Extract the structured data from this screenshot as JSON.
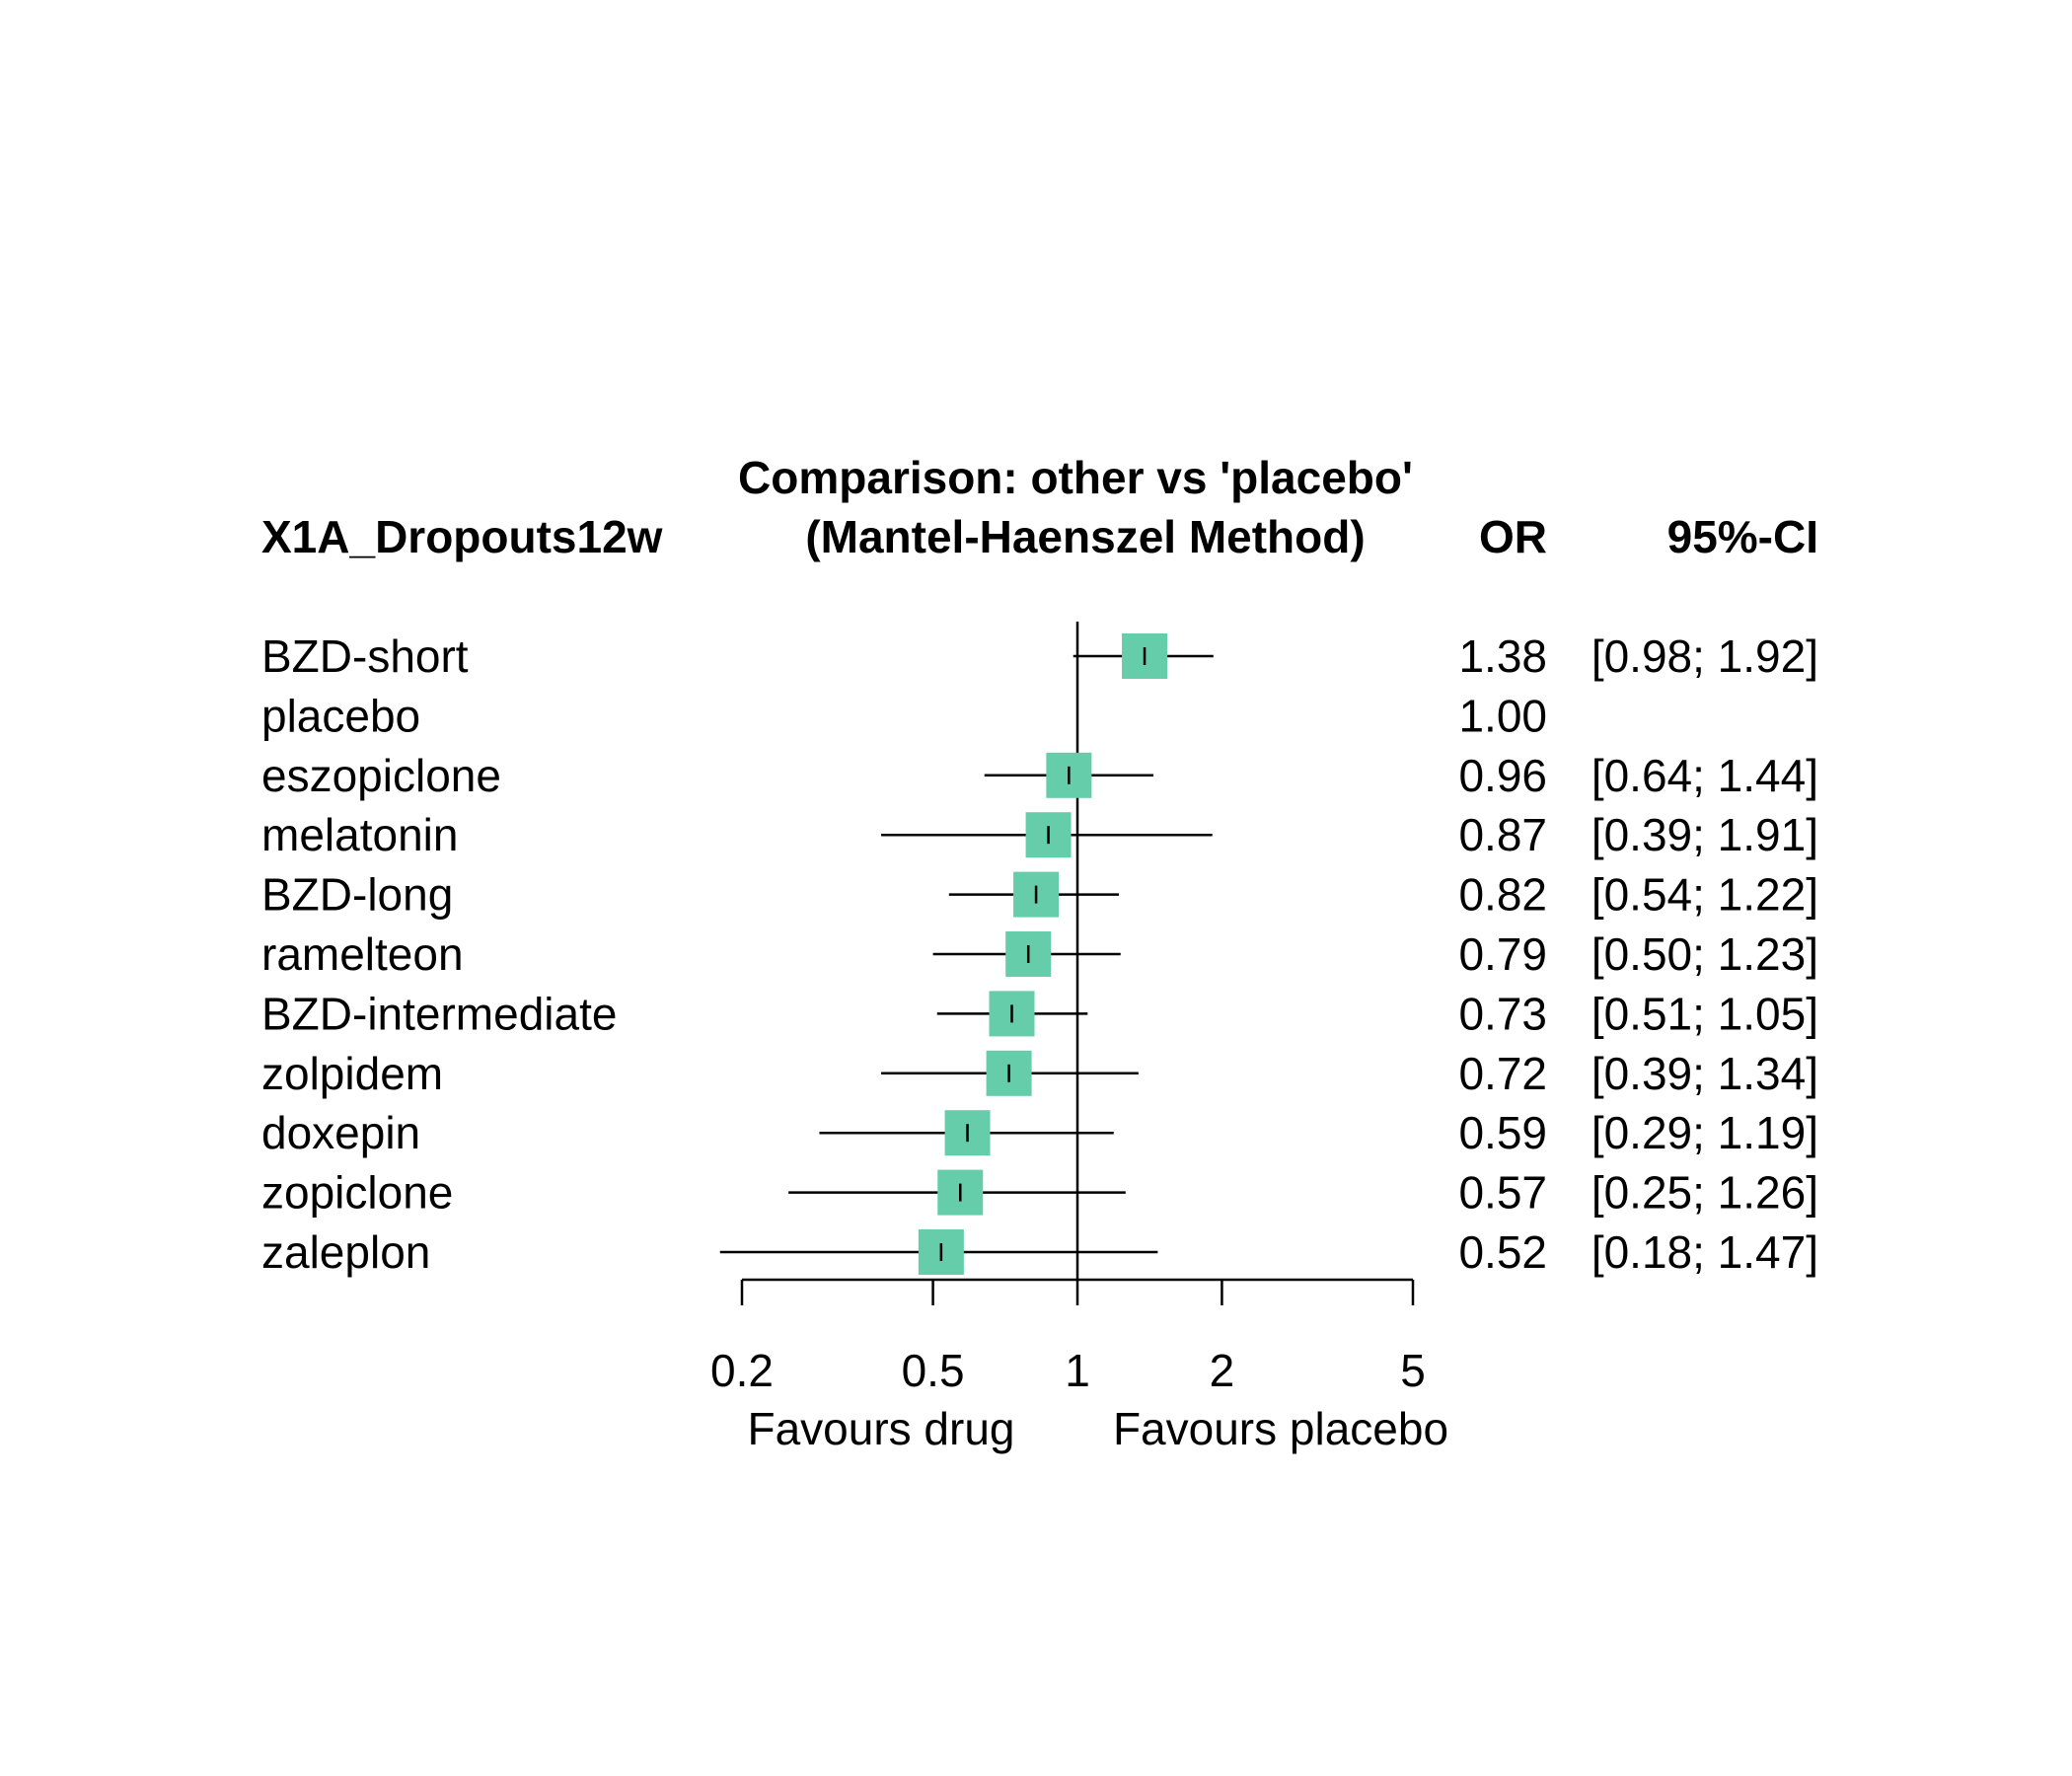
{
  "chart_data": {
    "type": "forest",
    "title": "Comparison: other vs 'placebo'",
    "subtitle": "(Mantel-Haenszel Method)",
    "outcome_label": "X1A_Dropouts12w",
    "columns": {
      "estimate": "OR",
      "ci": "95%-CI"
    },
    "x_scale": "log",
    "xlim": [
      0.2,
      5
    ],
    "x_ticks": [
      0.2,
      0.5,
      1,
      2,
      5
    ],
    "x_tick_labels": [
      "0.2",
      "0.5",
      "1",
      "2",
      "5"
    ],
    "reference_line": 1,
    "favours_left": "Favours drug",
    "favours_right": "Favours placebo",
    "marker_color": "#66cdaa",
    "rows": [
      {
        "label": "BZD-short",
        "or": 1.38,
        "lower": 0.98,
        "upper": 1.92,
        "or_text": "1.38",
        "ci_text": "[0.98; 1.92]"
      },
      {
        "label": "placebo",
        "or": 1.0,
        "lower": null,
        "upper": null,
        "or_text": "1.00",
        "ci_text": ""
      },
      {
        "label": "eszopiclone",
        "or": 0.96,
        "lower": 0.64,
        "upper": 1.44,
        "or_text": "0.96",
        "ci_text": "[0.64; 1.44]"
      },
      {
        "label": "melatonin",
        "or": 0.87,
        "lower": 0.39,
        "upper": 1.91,
        "or_text": "0.87",
        "ci_text": "[0.39; 1.91]"
      },
      {
        "label": "BZD-long",
        "or": 0.82,
        "lower": 0.54,
        "upper": 1.22,
        "or_text": "0.82",
        "ci_text": "[0.54; 1.22]"
      },
      {
        "label": "ramelteon",
        "or": 0.79,
        "lower": 0.5,
        "upper": 1.23,
        "or_text": "0.79",
        "ci_text": "[0.50; 1.23]"
      },
      {
        "label": "BZD-intermediate",
        "or": 0.73,
        "lower": 0.51,
        "upper": 1.05,
        "or_text": "0.73",
        "ci_text": "[0.51; 1.05]"
      },
      {
        "label": "zolpidem",
        "or": 0.72,
        "lower": 0.39,
        "upper": 1.34,
        "or_text": "0.72",
        "ci_text": "[0.39; 1.34]"
      },
      {
        "label": "doxepin",
        "or": 0.59,
        "lower": 0.29,
        "upper": 1.19,
        "or_text": "0.59",
        "ci_text": "[0.29; 1.19]"
      },
      {
        "label": "zopiclone",
        "or": 0.57,
        "lower": 0.25,
        "upper": 1.26,
        "or_text": "0.57",
        "ci_text": "[0.25; 1.26]"
      },
      {
        "label": "zaleplon",
        "or": 0.52,
        "lower": 0.18,
        "upper": 1.47,
        "or_text": "0.52",
        "ci_text": "[0.18; 1.47]"
      }
    ]
  }
}
